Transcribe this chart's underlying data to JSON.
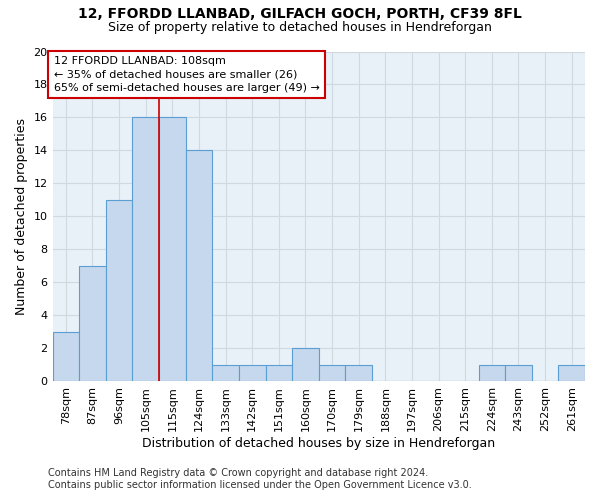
{
  "title": "12, FFORDD LLANBAD, GILFACH GOCH, PORTH, CF39 8FL",
  "subtitle": "Size of property relative to detached houses in Hendreforgan",
  "xlabel": "Distribution of detached houses by size in Hendreforgan",
  "ylabel": "Number of detached properties",
  "categories": [
    "78sqm",
    "87sqm",
    "96sqm",
    "105sqm",
    "115sqm",
    "124sqm",
    "133sqm",
    "142sqm",
    "151sqm",
    "160sqm",
    "170sqm",
    "179sqm",
    "188sqm",
    "197sqm",
    "206sqm",
    "215sqm",
    "224sqm",
    "243sqm",
    "252sqm",
    "261sqm"
  ],
  "values": [
    3,
    7,
    11,
    16,
    16,
    14,
    1,
    1,
    1,
    2,
    1,
    1,
    0,
    0,
    0,
    0,
    1,
    1,
    0,
    1
  ],
  "bar_color": "#c5d8ed",
  "bar_edge_color": "#5a9fd4",
  "bar_linewidth": 0.8,
  "red_line_x": 3.5,
  "annotation_text": "12 FFORDD LLANBAD: 108sqm\n← 35% of detached houses are smaller (26)\n65% of semi-detached houses are larger (49) →",
  "annotation_box_color": "#ffffff",
  "annotation_box_edge": "#cc0000",
  "ylim": [
    0,
    20
  ],
  "yticks": [
    0,
    2,
    4,
    6,
    8,
    10,
    12,
    14,
    16,
    18,
    20
  ],
  "grid_color": "#d0d8e0",
  "bg_color": "#e8f0f8",
  "footer": "Contains HM Land Registry data © Crown copyright and database right 2024.\nContains public sector information licensed under the Open Government Licence v3.0.",
  "title_fontsize": 10,
  "subtitle_fontsize": 9,
  "xlabel_fontsize": 9,
  "ylabel_fontsize": 9,
  "tick_fontsize": 8,
  "annot_fontsize": 8,
  "footer_fontsize": 7
}
